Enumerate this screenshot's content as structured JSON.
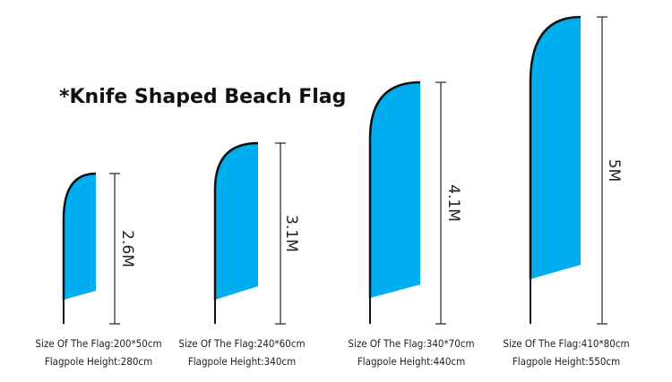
{
  "title": "*Knife Shaped Beach Flag",
  "flag_color": "#00AEEF",
  "flags": [
    {
      "height_label": "2.6M",
      "size": "Size Of The Flag:200*50cm",
      "pole": "Flagpole Height:280cm"
    },
    {
      "height_label": "3.1M",
      "size": "Size Of The Flag:240*60cm",
      "pole": "Flagpole Height:340cm"
    },
    {
      "height_label": "4.1M",
      "size": "Size Of The Flag:340*70cm",
      "pole": "Flagpole Height:440cm"
    },
    {
      "height_label": "5M",
      "size": "Size Of The Flag:410*80cm",
      "pole": "Flagpole Height:550cm"
    }
  ]
}
